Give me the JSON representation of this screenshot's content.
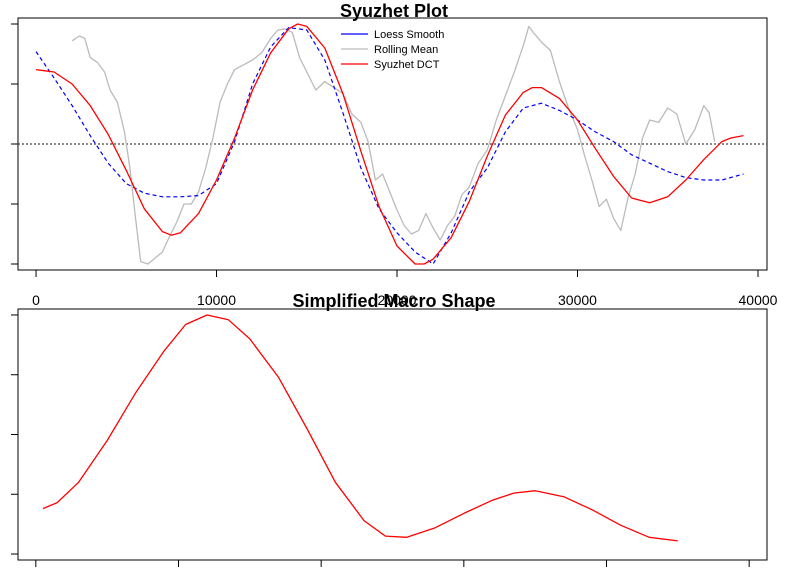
{
  "chart_data": [
    {
      "type": "line",
      "title": "Syuzhet Plot",
      "xlabel": "",
      "ylabel": "",
      "xlim": [
        -1000,
        40500
      ],
      "ylim": [
        -1.05,
        1.05
      ],
      "x_ticks": [
        0,
        10000,
        20000,
        30000,
        40000
      ],
      "x_tick_labels": [
        "0",
        "10000",
        "20000",
        "30000",
        "40000"
      ],
      "y_ticks": [
        -1,
        -0.5,
        0,
        0.5,
        1
      ],
      "y_tick_labels": [
        "",
        "",
        "",
        "",
        ""
      ],
      "reference_line": {
        "y": 0,
        "style": "dotted",
        "color": "#444444"
      },
      "legend_position": "top-center",
      "legend": [
        {
          "label": "Loess Smooth",
          "color": "#0000ff"
        },
        {
          "label": "Rolling Mean",
          "color": "#bbbbbb"
        },
        {
          "label": "Syuzhet DCT",
          "color": "#ff0000"
        }
      ],
      "series": [
        {
          "name": "Syuzhet DCT",
          "color": "#ff0000",
          "style": "solid",
          "points": [
            [
              0,
              0.62
            ],
            [
              500,
              0.61
            ],
            [
              1000,
              0.6
            ],
            [
              2000,
              0.5
            ],
            [
              3000,
              0.32
            ],
            [
              4000,
              0.08
            ],
            [
              5000,
              -0.22
            ],
            [
              6000,
              -0.54
            ],
            [
              7000,
              -0.73
            ],
            [
              7500,
              -0.76
            ],
            [
              8000,
              -0.74
            ],
            [
              9000,
              -0.58
            ],
            [
              10000,
              -0.3
            ],
            [
              11000,
              0.05
            ],
            [
              12000,
              0.45
            ],
            [
              13000,
              0.76
            ],
            [
              14000,
              0.96
            ],
            [
              14500,
              1.0
            ],
            [
              15000,
              0.98
            ],
            [
              16000,
              0.8
            ],
            [
              17000,
              0.42
            ],
            [
              18000,
              -0.06
            ],
            [
              19000,
              -0.52
            ],
            [
              20000,
              -0.85
            ],
            [
              21000,
              -1.0
            ],
            [
              21500,
              -1.0
            ],
            [
              22000,
              -0.96
            ],
            [
              23000,
              -0.78
            ],
            [
              24000,
              -0.48
            ],
            [
              25000,
              -0.1
            ],
            [
              26000,
              0.24
            ],
            [
              27000,
              0.43
            ],
            [
              27500,
              0.47
            ],
            [
              28000,
              0.47
            ],
            [
              29000,
              0.38
            ],
            [
              30000,
              0.2
            ],
            [
              31000,
              -0.04
            ],
            [
              32000,
              -0.27
            ],
            [
              33000,
              -0.45
            ],
            [
              34000,
              -0.49
            ],
            [
              35000,
              -0.44
            ],
            [
              36000,
              -0.3
            ],
            [
              37000,
              -0.13
            ],
            [
              38000,
              0.02
            ],
            [
              38500,
              0.05
            ],
            [
              39200,
              0.07
            ]
          ]
        },
        {
          "name": "Loess Smooth",
          "color": "#0000ff",
          "style": "dashed",
          "points": [
            [
              0,
              0.77
            ],
            [
              1000,
              0.55
            ],
            [
              2000,
              0.32
            ],
            [
              3000,
              0.07
            ],
            [
              4000,
              -0.16
            ],
            [
              5000,
              -0.33
            ],
            [
              6000,
              -0.41
            ],
            [
              7000,
              -0.44
            ],
            [
              8000,
              -0.44
            ],
            [
              9000,
              -0.43
            ],
            [
              10000,
              -0.33
            ],
            [
              11000,
              0.02
            ],
            [
              12000,
              0.5
            ],
            [
              13000,
              0.81
            ],
            [
              14000,
              0.97
            ],
            [
              15000,
              0.95
            ],
            [
              16000,
              0.7
            ],
            [
              17000,
              0.26
            ],
            [
              18000,
              -0.2
            ],
            [
              19000,
              -0.54
            ],
            [
              20000,
              -0.74
            ],
            [
              21000,
              -0.9
            ],
            [
              22000,
              -1.0
            ],
            [
              23000,
              -0.74
            ],
            [
              24000,
              -0.4
            ],
            [
              25000,
              -0.2
            ],
            [
              26000,
              0.1
            ],
            [
              27000,
              0.3
            ],
            [
              28000,
              0.34
            ],
            [
              29000,
              0.28
            ],
            [
              30000,
              0.2
            ],
            [
              31000,
              0.1
            ],
            [
              32000,
              0.02
            ],
            [
              33000,
              -0.09
            ],
            [
              34000,
              -0.16
            ],
            [
              35000,
              -0.23
            ],
            [
              36000,
              -0.28
            ],
            [
              37000,
              -0.3
            ],
            [
              38000,
              -0.3
            ],
            [
              39200,
              -0.25
            ]
          ]
        },
        {
          "name": "Rolling Mean",
          "color": "#bbbbbb",
          "style": "solid",
          "points": [
            [
              2000,
              0.86
            ],
            [
              2400,
              0.9
            ],
            [
              2700,
              0.88
            ],
            [
              3000,
              0.72
            ],
            [
              3400,
              0.68
            ],
            [
              3800,
              0.6
            ],
            [
              4100,
              0.45
            ],
            [
              4500,
              0.35
            ],
            [
              4900,
              0.1
            ],
            [
              5200,
              -0.2
            ],
            [
              5500,
              -0.6
            ],
            [
              5800,
              -0.98
            ],
            [
              6200,
              -1.0
            ],
            [
              6600,
              -0.95
            ],
            [
              7000,
              -0.9
            ],
            [
              7400,
              -0.77
            ],
            [
              7800,
              -0.65
            ],
            [
              8200,
              -0.5
            ],
            [
              8600,
              -0.5
            ],
            [
              9000,
              -0.4
            ],
            [
              9400,
              -0.2
            ],
            [
              9800,
              0.05
            ],
            [
              10200,
              0.35
            ],
            [
              10600,
              0.5
            ],
            [
              11000,
              0.62
            ],
            [
              11500,
              0.66
            ],
            [
              12000,
              0.7
            ],
            [
              12500,
              0.76
            ],
            [
              13000,
              0.88
            ],
            [
              13400,
              0.95
            ],
            [
              13800,
              0.96
            ],
            [
              14200,
              0.93
            ],
            [
              14600,
              0.72
            ],
            [
              15000,
              0.6
            ],
            [
              15500,
              0.45
            ],
            [
              16000,
              0.52
            ],
            [
              16500,
              0.47
            ],
            [
              17000,
              0.42
            ],
            [
              17500,
              0.25
            ],
            [
              18000,
              0.18
            ],
            [
              18400,
              0.02
            ],
            [
              18800,
              -0.3
            ],
            [
              19200,
              -0.25
            ],
            [
              19600,
              -0.4
            ],
            [
              20000,
              -0.55
            ],
            [
              20400,
              -0.68
            ],
            [
              20800,
              -0.75
            ],
            [
              21200,
              -0.72
            ],
            [
              21600,
              -0.58
            ],
            [
              22000,
              -0.7
            ],
            [
              22400,
              -0.8
            ],
            [
              22800,
              -0.68
            ],
            [
              23200,
              -0.6
            ],
            [
              23600,
              -0.42
            ],
            [
              24000,
              -0.36
            ],
            [
              24500,
              -0.16
            ],
            [
              25000,
              -0.05
            ],
            [
              25500,
              0.2
            ],
            [
              26000,
              0.4
            ],
            [
              26500,
              0.6
            ],
            [
              27000,
              0.82
            ],
            [
              27300,
              0.98
            ],
            [
              27600,
              0.92
            ],
            [
              28000,
              0.85
            ],
            [
              28500,
              0.78
            ],
            [
              29000,
              0.52
            ],
            [
              29500,
              0.3
            ],
            [
              30000,
              0.12
            ],
            [
              30400,
              -0.1
            ],
            [
              30800,
              -0.3
            ],
            [
              31200,
              -0.52
            ],
            [
              31600,
              -0.46
            ],
            [
              32000,
              -0.62
            ],
            [
              32400,
              -0.72
            ],
            [
              32800,
              -0.45
            ],
            [
              33200,
              -0.25
            ],
            [
              33600,
              0.05
            ],
            [
              34000,
              0.2
            ],
            [
              34500,
              0.18
            ],
            [
              35000,
              0.3
            ],
            [
              35500,
              0.25
            ],
            [
              36000,
              0.0
            ],
            [
              36500,
              0.12
            ],
            [
              37000,
              0.32
            ],
            [
              37300,
              0.26
            ],
            [
              37600,
              0.02
            ]
          ]
        }
      ]
    },
    {
      "type": "line",
      "title": "Simplified Macro Shape",
      "xlabel": "",
      "ylabel": "",
      "xlim": [
        -2.5,
        102.5
      ],
      "ylim": [
        -1.05,
        1.05
      ],
      "x_ticks": [
        0,
        20,
        40,
        60,
        80,
        100
      ],
      "x_tick_labels": [
        "",
        "",
        "",
        "",
        "",
        ""
      ],
      "y_ticks": [
        -1,
        -0.5,
        0,
        0.5,
        1
      ],
      "y_tick_labels": [
        "",
        "",
        "",
        "",
        ""
      ],
      "series": [
        {
          "name": "",
          "color": "#ff0000",
          "style": "solid",
          "points": [
            [
              1,
              -0.62
            ],
            [
              3,
              -0.57
            ],
            [
              6,
              -0.4
            ],
            [
              10,
              -0.05
            ],
            [
              14,
              0.35
            ],
            [
              18,
              0.7
            ],
            [
              21,
              0.92
            ],
            [
              24,
              1.0
            ],
            [
              27,
              0.96
            ],
            [
              30,
              0.8
            ],
            [
              34,
              0.48
            ],
            [
              38,
              0.05
            ],
            [
              42,
              -0.4
            ],
            [
              46,
              -0.72
            ],
            [
              49,
              -0.85
            ],
            [
              52,
              -0.86
            ],
            [
              56,
              -0.78
            ],
            [
              60,
              -0.66
            ],
            [
              64,
              -0.55
            ],
            [
              67,
              -0.49
            ],
            [
              70,
              -0.47
            ],
            [
              74,
              -0.52
            ],
            [
              78,
              -0.63
            ],
            [
              82,
              -0.76
            ],
            [
              86,
              -0.86
            ],
            [
              90,
              -0.89
            ]
          ]
        }
      ]
    }
  ]
}
